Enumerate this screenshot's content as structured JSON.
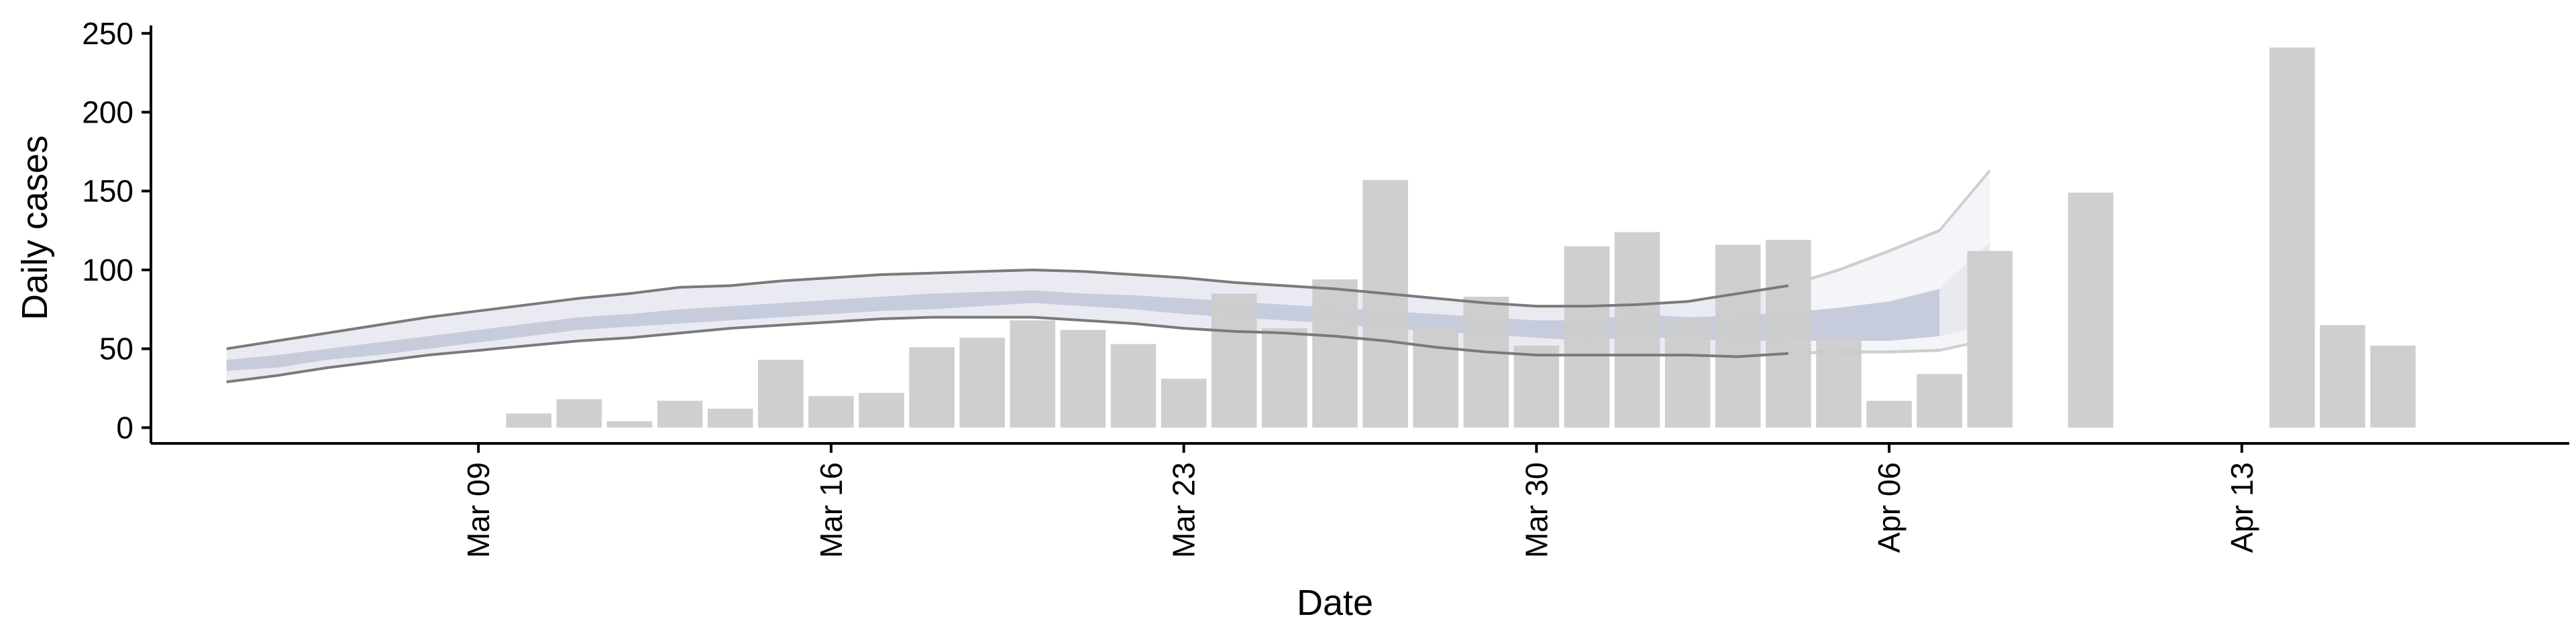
{
  "chart_data": {
    "type": "bar",
    "title": "",
    "xlabel": "Date",
    "ylabel": "Daily cases",
    "ylim": [
      -10,
      255
    ],
    "y_ticks": [
      0,
      50,
      100,
      150,
      200,
      250
    ],
    "x_range": [
      "2020-03-02T12:00",
      "2020-04-19T12:00"
    ],
    "x_ticks": [
      {
        "date": "2020-03-09",
        "label": "Mar 09"
      },
      {
        "date": "2020-03-16",
        "label": "Mar 16"
      },
      {
        "date": "2020-03-23",
        "label": "Mar 23"
      },
      {
        "date": "2020-03-30",
        "label": "Mar 30"
      },
      {
        "date": "2020-04-06",
        "label": "Apr 06"
      },
      {
        "date": "2020-04-13",
        "label": "Apr 13"
      }
    ],
    "grid": false,
    "legend": "none",
    "colors": {
      "bars": "#cccccc",
      "band_outer": "#e6e8f0",
      "band_inner": "#c3c9da",
      "band_forecast_outer": "#f4f5f8",
      "band_forecast_inner": "#e8eaf0",
      "bound_line": "#7a7a7a",
      "bound_line_forecast": "#cfcfcf",
      "axis": "#000000"
    },
    "bars": [
      {
        "date": "2020-03-10",
        "value": 9
      },
      {
        "date": "2020-03-11",
        "value": 18
      },
      {
        "date": "2020-03-12",
        "value": 4
      },
      {
        "date": "2020-03-13",
        "value": 17
      },
      {
        "date": "2020-03-14",
        "value": 12
      },
      {
        "date": "2020-03-15",
        "value": 43
      },
      {
        "date": "2020-03-16",
        "value": 20
      },
      {
        "date": "2020-03-17",
        "value": 22
      },
      {
        "date": "2020-03-18",
        "value": 51
      },
      {
        "date": "2020-03-19",
        "value": 57
      },
      {
        "date": "2020-03-20",
        "value": 68
      },
      {
        "date": "2020-03-21",
        "value": 62
      },
      {
        "date": "2020-03-22",
        "value": 53
      },
      {
        "date": "2020-03-23",
        "value": 31
      },
      {
        "date": "2020-03-24",
        "value": 85
      },
      {
        "date": "2020-03-25",
        "value": 63
      },
      {
        "date": "2020-03-26",
        "value": 94
      },
      {
        "date": "2020-03-27",
        "value": 157
      },
      {
        "date": "2020-03-28",
        "value": 64
      },
      {
        "date": "2020-03-29",
        "value": 83
      },
      {
        "date": "2020-03-30",
        "value": 52
      },
      {
        "date": "2020-03-31",
        "value": 115
      },
      {
        "date": "2020-04-01",
        "value": 124
      },
      {
        "date": "2020-04-02",
        "value": 69
      },
      {
        "date": "2020-04-03",
        "value": 116
      },
      {
        "date": "2020-04-04",
        "value": 119
      },
      {
        "date": "2020-04-05",
        "value": 57
      },
      {
        "date": "2020-04-06",
        "value": 17
      },
      {
        "date": "2020-04-07",
        "value": 34
      },
      {
        "date": "2020-04-08",
        "value": 112
      },
      {
        "date": "2020-04-10",
        "value": 149
      },
      {
        "date": "2020-04-14",
        "value": 241
      },
      {
        "date": "2020-04-15",
        "value": 65
      },
      {
        "date": "2020-04-16",
        "value": 52
      }
    ],
    "estimate_band": {
      "dates": [
        "2020-03-04",
        "2020-03-05",
        "2020-03-06",
        "2020-03-07",
        "2020-03-08",
        "2020-03-09",
        "2020-03-10",
        "2020-03-11",
        "2020-03-12",
        "2020-03-13",
        "2020-03-14",
        "2020-03-15",
        "2020-03-16",
        "2020-03-17",
        "2020-03-18",
        "2020-03-19",
        "2020-03-20",
        "2020-03-21",
        "2020-03-22",
        "2020-03-23",
        "2020-03-24",
        "2020-03-25",
        "2020-03-26",
        "2020-03-27",
        "2020-03-28",
        "2020-03-29",
        "2020-03-30",
        "2020-03-31",
        "2020-04-01",
        "2020-04-02",
        "2020-04-03",
        "2020-04-04",
        "2020-04-05",
        "2020-04-06",
        "2020-04-07"
      ],
      "upper": [
        50,
        55,
        60,
        65,
        70,
        74,
        78,
        82,
        85,
        89,
        90,
        93,
        95,
        97,
        98,
        99,
        100,
        99,
        97,
        95,
        92,
        90,
        88,
        85,
        82,
        79,
        77,
        77,
        78,
        80,
        85,
        90,
        100,
        112,
        125
      ],
      "inner_upper": [
        43,
        46,
        50,
        54,
        58,
        62,
        66,
        70,
        72,
        75,
        77,
        79,
        81,
        83,
        85,
        86,
        87,
        85,
        84,
        82,
        80,
        78,
        76,
        74,
        72,
        70,
        68,
        68,
        72,
        70,
        71,
        73,
        76,
        80,
        88
      ],
      "inner_lower": [
        36,
        38,
        43,
        46,
        50,
        54,
        58,
        62,
        64,
        66,
        68,
        70,
        72,
        74,
        75,
        77,
        79,
        77,
        75,
        72,
        70,
        68,
        66,
        63,
        61,
        59,
        57,
        55,
        58,
        56,
        55,
        55,
        55,
        55,
        58
      ],
      "lower": [
        29,
        33,
        38,
        42,
        46,
        49,
        52,
        55,
        57,
        60,
        63,
        65,
        67,
        69,
        70,
        70,
        70,
        68,
        66,
        63,
        61,
        60,
        58,
        55,
        51,
        48,
        46,
        46,
        46,
        46,
        45,
        47,
        48,
        48,
        49
      ]
    },
    "forecast_band": {
      "dates": [
        "2020-04-04",
        "2020-04-05",
        "2020-04-06",
        "2020-04-07",
        "2020-04-08"
      ],
      "upper": [
        90,
        100,
        112,
        125,
        163
      ],
      "inner_upper": [
        73,
        76,
        80,
        88,
        118
      ],
      "inner_lower": [
        55,
        55,
        55,
        58,
        65
      ],
      "lower": [
        47,
        48,
        48,
        49,
        56
      ]
    }
  }
}
